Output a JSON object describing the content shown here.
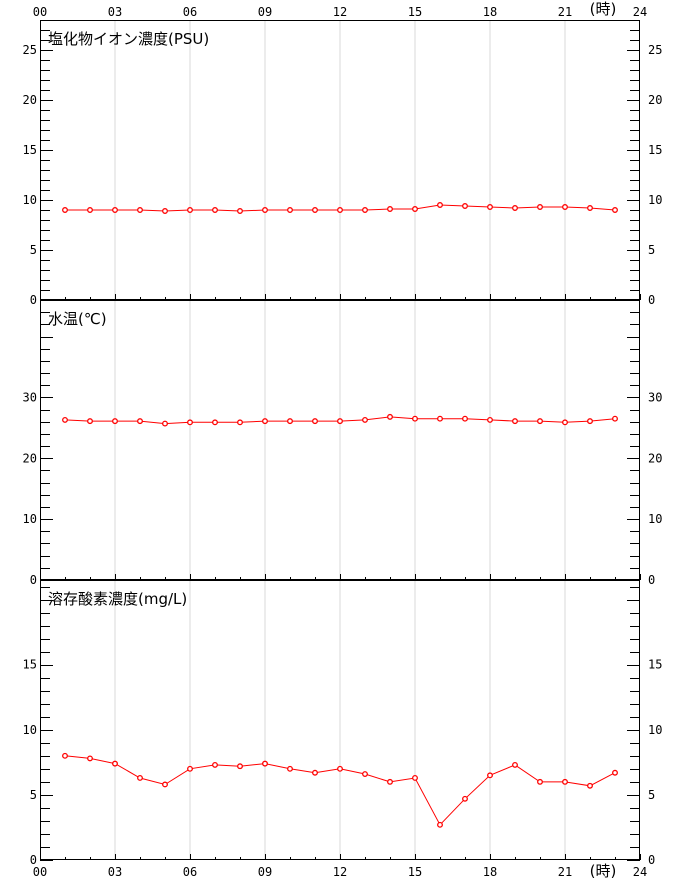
{
  "time_axis": {
    "hour_labels": [
      "00",
      "03",
      "06",
      "09",
      "12",
      "15",
      "18",
      "21",
      "24"
    ],
    "unit_label": "(時)"
  },
  "chart_data": [
    {
      "type": "line",
      "title": "塩化物イオン濃度(PSU)",
      "x": [
        1,
        2,
        3,
        4,
        5,
        6,
        7,
        8,
        9,
        10,
        11,
        12,
        13,
        14,
        15,
        16,
        17,
        18,
        19,
        20,
        21,
        22,
        23
      ],
      "values": [
        9.0,
        9.0,
        9.0,
        9.0,
        8.9,
        9.0,
        9.0,
        8.9,
        9.0,
        9.0,
        9.0,
        9.0,
        9.0,
        9.1,
        9.1,
        9.5,
        9.4,
        9.3,
        9.2,
        9.3,
        9.3,
        9.2,
        9.0
      ],
      "ylim": [
        0,
        28
      ],
      "yticks": [
        "0",
        "5",
        "10",
        "15",
        "20",
        "25"
      ],
      "grid": true,
      "color": "#ff0000"
    },
    {
      "type": "line",
      "title": "水温(℃)",
      "x": [
        1,
        2,
        3,
        4,
        5,
        6,
        7,
        8,
        9,
        10,
        11,
        12,
        13,
        14,
        15,
        16,
        17,
        18,
        19,
        20,
        21,
        22,
        23
      ],
      "values": [
        26.3,
        26.1,
        26.1,
        26.1,
        25.7,
        25.9,
        25.9,
        25.9,
        26.1,
        26.1,
        26.1,
        26.1,
        26.3,
        26.8,
        26.5,
        26.5,
        26.5,
        26.3,
        26.1,
        26.1,
        25.9,
        26.1,
        26.5
      ],
      "ylim": [
        0,
        46
      ],
      "yticks": [
        "0",
        "10",
        "20",
        "30"
      ],
      "grid": true,
      "color": "#ff0000"
    },
    {
      "type": "line",
      "title": "溶存酸素濃度(mg/L)",
      "x": [
        1,
        2,
        3,
        4,
        5,
        6,
        7,
        8,
        9,
        10,
        11,
        12,
        13,
        14,
        15,
        16,
        17,
        18,
        19,
        20,
        21,
        22,
        23
      ],
      "values": [
        8.0,
        7.8,
        7.4,
        6.3,
        5.8,
        7.0,
        7.3,
        7.2,
        7.4,
        7.0,
        6.7,
        7.0,
        6.6,
        6.0,
        6.3,
        2.7,
        4.7,
        6.5,
        7.3,
        6.0,
        6.0,
        5.7,
        6.7
      ],
      "ylim": [
        0,
        21.5
      ],
      "yticks": [
        "0",
        "5",
        "10",
        "15"
      ],
      "grid": true,
      "color": "#ff0000"
    }
  ]
}
